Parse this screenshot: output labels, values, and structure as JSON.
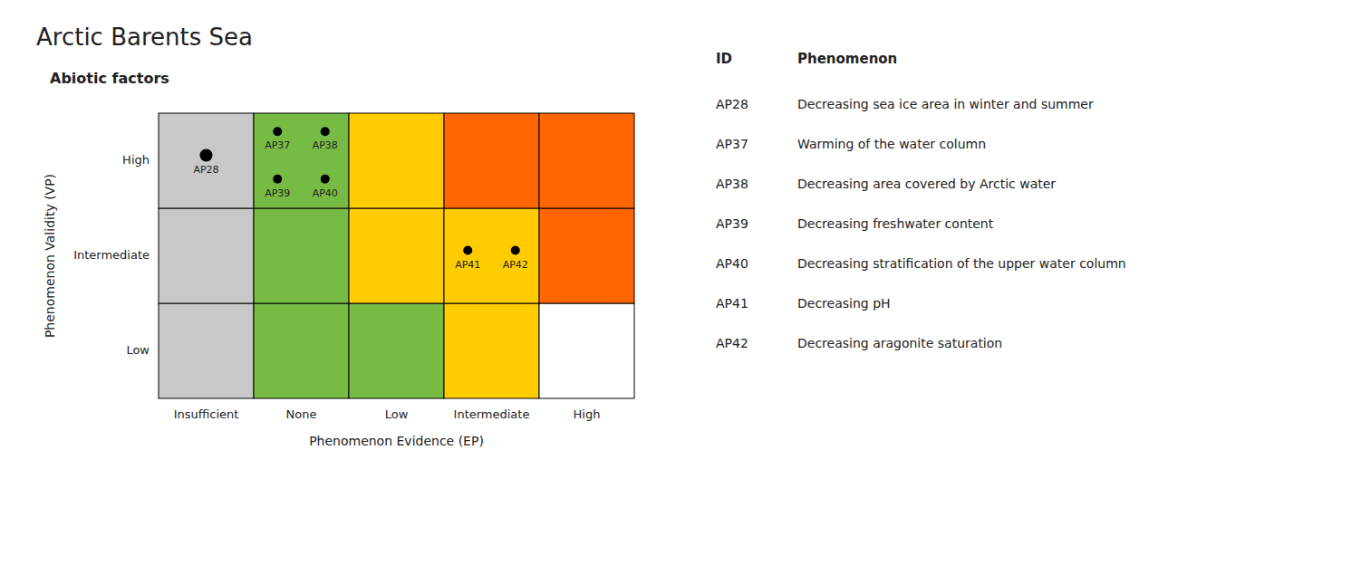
{
  "chart_data": {
    "type": "matrix",
    "title": "Arctic Barents Sea",
    "subtitle": "Abiotic factors",
    "x_label": "Phenomenon Evidence (EP)",
    "y_label": "Phenomenon Validity (VP)",
    "x_categories": [
      "Insufficient",
      "None",
      "Low",
      "Intermediate",
      "High"
    ],
    "y_categories": [
      "Low",
      "Intermediate",
      "High"
    ],
    "cell_colors": [
      [
        "#c8c8c8",
        "#77bb44",
        "#77bb44",
        "#ffcc00",
        "#ffffff"
      ],
      [
        "#c8c8c8",
        "#77bb44",
        "#ffcc00",
        "#ffcc00",
        "#ff6600"
      ],
      [
        "#c8c8c8",
        "#77bb44",
        "#ffcc00",
        "#ff6600",
        "#ff6600"
      ]
    ],
    "color": "#000000",
    "legend_headers": [
      "ID",
      "Phenomenon"
    ],
    "points": [
      {
        "id": "AP28",
        "x": "Insufficient",
        "y": "High",
        "text": "Decreasing sea ice area in winter and summer"
      },
      {
        "id": "AP37",
        "x": "None",
        "y": "High",
        "text": "Warming of the water column"
      },
      {
        "id": "AP38",
        "x": "None",
        "y": "High",
        "text": "Decreasing area covered by Arctic water"
      },
      {
        "id": "AP39",
        "x": "None",
        "y": "High",
        "text": "Decreasing freshwater content"
      },
      {
        "id": "AP40",
        "x": "None",
        "y": "High",
        "text": "Decreasing stratification of the upper water column"
      },
      {
        "id": "AP41",
        "x": "Intermediate",
        "y": "Intermediate",
        "text": "Decreasing pH"
      },
      {
        "id": "AP42",
        "x": "Intermediate",
        "y": "Intermediate",
        "text": "Decreasing aragonite saturation"
      }
    ]
  }
}
